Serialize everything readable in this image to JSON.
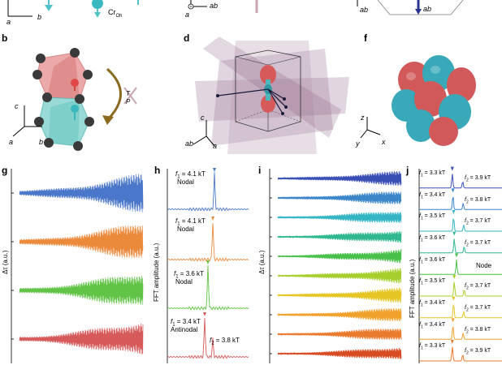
{
  "panels": {
    "top_row": {
      "a_axes": {
        "a": "a",
        "b": "b"
      },
      "cr_label": "Cr",
      "cr_sub": "Oh",
      "c_axes": {
        "a": "a",
        "ab": "ab"
      },
      "e_axes": {
        "ab": "ab"
      },
      "e_arrow_label": "ab"
    },
    "b": {
      "label": "b",
      "axes": {
        "c": "c",
        "a": "a",
        "b": "b"
      },
      "sym1": "T",
      "sym2": "P"
    },
    "d": {
      "label": "d",
      "axes": {
        "c": "c",
        "ab": "ab",
        "a": "a"
      }
    },
    "f": {
      "label": "f",
      "axes": {
        "z": "z",
        "y": "y",
        "x": "x"
      }
    },
    "g": {
      "label": "g",
      "ylabel": "Δτ (a.u.)",
      "colors": [
        "#4a77c9",
        "#ec8a3c",
        "#62c447",
        "#d65a5a"
      ]
    },
    "h": {
      "label": "h",
      "ylabel": "FFT amplitude (a.u.)",
      "colors": [
        "#4a77c9",
        "#ec8a3c",
        "#62c447",
        "#d65a5a"
      ],
      "annotations": [
        {
          "f": "f",
          "sub": "1",
          "value": " = 4.1 kT",
          "desc": "Nodal"
        },
        {
          "f": "f",
          "sub": "1",
          "value": " = 4.1 kT",
          "desc": "Nodal"
        },
        {
          "f": "f",
          "sub": "1",
          "value": " = 3.6 kT",
          "desc": "Nodal"
        },
        {
          "f": "f",
          "sub": "1",
          "value": " = 3.4 kT",
          "desc": "Antinodal"
        }
      ],
      "f2_label": {
        "f": "f",
        "sub": "2",
        "value": " = 3.8 kT"
      }
    },
    "i": {
      "label": "i",
      "ylabel": "Δτ (a.u.)",
      "colors": [
        "#3a4fb5",
        "#3a86c9",
        "#33b5c4",
        "#2fb88f",
        "#49c04a",
        "#a6cf2e",
        "#e5c523",
        "#f0a12b",
        "#ea7a2e",
        "#d84c24"
      ]
    },
    "j": {
      "label": "j",
      "ylabel": "FFT amplitude (a.u.)",
      "colors": [
        "#3a4fb5",
        "#3a86c9",
        "#33b5c4",
        "#2fb88f",
        "#49c04a",
        "#a6cf2e",
        "#e5c523",
        "#f0a12b",
        "#ea7a2e",
        "#d84c24"
      ],
      "rows": [
        {
          "f1": " = 3.3 kT",
          "f2": " = 3.9 kT"
        },
        {
          "f1": " = 3.4 kT",
          "f2": " = 3.8 kT"
        },
        {
          "f1": " = 3.5 kT",
          "f2": " = 3.7 kT"
        },
        {
          "f1": " = 3.6 kT",
          "f2": " = 3.7 kT"
        },
        {
          "f1": " = 3.6 kT",
          "f2": "",
          "node": "Node"
        },
        {
          "f1": " = 3.5 kT",
          "f2": " = 3.7 kT"
        },
        {
          "f1": " = 3.4 kT",
          "f2": " = 3.7 kT"
        },
        {
          "f1": " = 3.4 kT",
          "f2": " = 3.8 kT"
        },
        {
          "f1": " = 3.3 kT",
          "f2": " = 3.9 kT"
        }
      ]
    }
  }
}
